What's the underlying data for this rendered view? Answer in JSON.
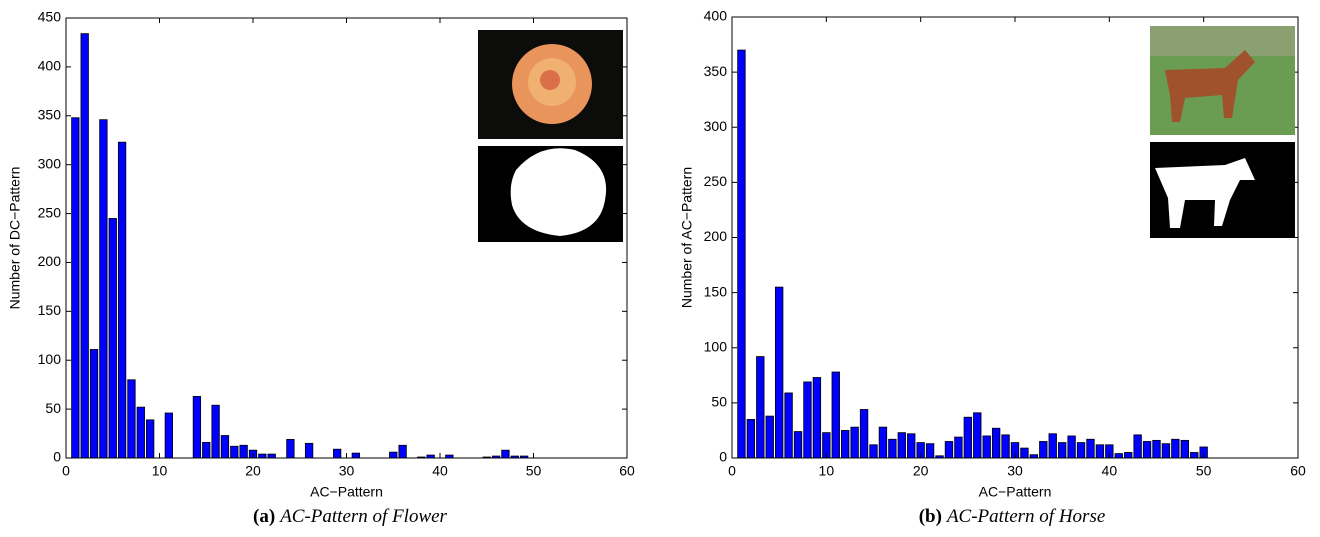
{
  "chart_data": [
    {
      "type": "bar",
      "xlabel": "AC−Pattern",
      "ylabel": "Number of DC−Pattern",
      "caption": {
        "label": "(a)",
        "text": "AC-Pattern of Flower"
      },
      "x": [
        1,
        2,
        3,
        4,
        5,
        6,
        7,
        8,
        9,
        10,
        11,
        12,
        13,
        14,
        15,
        16,
        17,
        18,
        19,
        20,
        21,
        22,
        23,
        24,
        25,
        26,
        27,
        28,
        29,
        30,
        31,
        32,
        33,
        34,
        35,
        36,
        37,
        38,
        39,
        40,
        41,
        42,
        43,
        44,
        45,
        46,
        47,
        48,
        49,
        50
      ],
      "values": [
        348,
        434,
        111,
        346,
        245,
        323,
        80,
        52,
        39,
        0,
        46,
        0,
        0,
        63,
        16,
        54,
        23,
        12,
        13,
        8,
        4,
        4,
        0,
        19,
        0,
        15,
        0,
        0,
        9,
        0,
        5,
        0,
        0,
        0,
        6,
        13,
        0,
        1,
        3,
        0,
        3,
        0,
        0,
        0,
        1,
        2,
        8,
        2,
        2,
        0
      ],
      "color": "#0000ff",
      "xlim": [
        0,
        60
      ],
      "xticks": [
        0,
        10,
        20,
        30,
        40,
        50,
        60
      ],
      "ylim": [
        0,
        450
      ],
      "yticks": [
        0,
        50,
        100,
        150,
        200,
        250,
        300,
        350,
        400,
        450
      ]
    },
    {
      "type": "bar",
      "xlabel": "AC−Pattern",
      "ylabel": "Number of AC−Pattern",
      "caption": {
        "label": "(b)",
        "text": "AC-Pattern of Horse"
      },
      "x": [
        1,
        2,
        3,
        4,
        5,
        6,
        7,
        8,
        9,
        10,
        11,
        12,
        13,
        14,
        15,
        16,
        17,
        18,
        19,
        20,
        21,
        22,
        23,
        24,
        25,
        26,
        27,
        28,
        29,
        30,
        31,
        32,
        33,
        34,
        35,
        36,
        37,
        38,
        39,
        40,
        41,
        42,
        43,
        44,
        45,
        46,
        47,
        48,
        49,
        50
      ],
      "values": [
        370,
        35,
        92,
        38,
        155,
        59,
        24,
        69,
        73,
        23,
        78,
        25,
        28,
        44,
        12,
        28,
        17,
        23,
        22,
        14,
        13,
        2,
        15,
        19,
        37,
        41,
        20,
        27,
        21,
        14,
        9,
        3,
        15,
        22,
        14,
        20,
        14,
        17,
        12,
        12,
        4,
        5,
        21,
        15,
        16,
        13,
        17,
        16,
        5,
        10
      ],
      "color": "#0000ff",
      "xlim": [
        0,
        60
      ],
      "xticks": [
        0,
        10,
        20,
        30,
        40,
        50,
        60
      ],
      "ylim": [
        0,
        400
      ],
      "yticks": [
        0,
        50,
        100,
        150,
        200,
        250,
        300,
        350,
        400
      ]
    }
  ]
}
